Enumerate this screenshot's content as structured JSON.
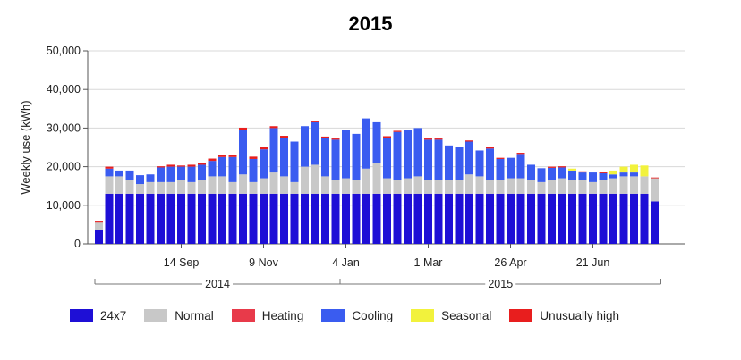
{
  "chart_data": {
    "type": "bar",
    "stacked": true,
    "title": "2015",
    "ylabel": "Weekly use (kWh)",
    "ylim": [
      0,
      50000
    ],
    "yticks": [
      0,
      10000,
      20000,
      30000,
      40000,
      50000
    ],
    "ytick_labels": [
      "0",
      "10,000",
      "20,000",
      "30,000",
      "40,000",
      "50,000"
    ],
    "grid": true,
    "legend_position": "bottom",
    "x_tick_labels": [
      {
        "label": "14 Sep",
        "index": 8
      },
      {
        "label": "9 Nov",
        "index": 16
      },
      {
        "label": "4 Jan",
        "index": 24
      },
      {
        "label": "1 Mar",
        "index": 32
      },
      {
        "label": "26 Apr",
        "index": 40
      },
      {
        "label": "21 Jun",
        "index": 48
      }
    ],
    "year_groups": [
      {
        "label": "2014",
        "start": 0,
        "end": 23
      },
      {
        "label": "2015",
        "start": 24,
        "end": 54
      }
    ],
    "categories_count": 55,
    "series": [
      {
        "name": "24x7",
        "color": "#1e0fd6",
        "values": [
          3500,
          13000,
          13000,
          13000,
          13000,
          13000,
          13000,
          13000,
          13000,
          13000,
          13000,
          13000,
          13000,
          13000,
          13000,
          13000,
          13000,
          13000,
          13000,
          13000,
          13000,
          13000,
          13000,
          13000,
          13000,
          13000,
          13000,
          13000,
          13000,
          13000,
          13000,
          13000,
          13000,
          13000,
          13000,
          13000,
          13000,
          13000,
          13000,
          13000,
          13000,
          13000,
          13000,
          13000,
          13000,
          13000,
          13000,
          13000,
          13000,
          13000,
          13000,
          13000,
          13000,
          13000,
          11000
        ]
      },
      {
        "name": "Normal",
        "color": "#c8c8c8",
        "values": [
          2000,
          4500,
          4500,
          3500,
          2500,
          3000,
          3000,
          3000,
          3500,
          3000,
          3500,
          4500,
          4500,
          3000,
          5000,
          3000,
          4000,
          5500,
          4500,
          3000,
          7000,
          7500,
          4500,
          3500,
          4000,
          3500,
          6500,
          8000,
          4000,
          3500,
          4000,
          4500,
          3500,
          3500,
          3500,
          3500,
          5000,
          4500,
          3500,
          3500,
          4000,
          4000,
          3500,
          3000,
          3500,
          4000,
          3500,
          3500,
          3000,
          3500,
          4000,
          4500,
          4500,
          4500,
          6000
        ]
      },
      {
        "name": "Heating",
        "color": "#e83a4a",
        "values": [
          0,
          0,
          0,
          0,
          0,
          0,
          0,
          0,
          0,
          0,
          0,
          0,
          0,
          0,
          0,
          0,
          0,
          0,
          0,
          0,
          0,
          0,
          0,
          0,
          0,
          0,
          0,
          0,
          0,
          0,
          0,
          0,
          0,
          0,
          0,
          0,
          0,
          0,
          0,
          0,
          0,
          0,
          0,
          0,
          0,
          0,
          0,
          0,
          0,
          0,
          0,
          0,
          0,
          0,
          0
        ]
      },
      {
        "name": "Cooling",
        "color": "#3a5cf0",
        "values": [
          0,
          2000,
          1500,
          2500,
          2300,
          2000,
          3800,
          4000,
          3500,
          4000,
          4000,
          4000,
          5000,
          6500,
          11500,
          6000,
          7500,
          11500,
          10000,
          10500,
          10500,
          11000,
          10000,
          10500,
          12500,
          12000,
          13000,
          10500,
          10500,
          12500,
          12500,
          12500,
          10500,
          10500,
          9000,
          8500,
          8500,
          6700,
          8200,
          5500,
          5300,
          6300,
          4000,
          3600,
          3200,
          2800,
          2500,
          2000,
          2500,
          1800,
          1000,
          1000,
          1000,
          0,
          0
        ]
      },
      {
        "name": "Seasonal",
        "color": "#f2f23c",
        "values": [
          0,
          0,
          0,
          0,
          0,
          0,
          0,
          0,
          0,
          0,
          0,
          0,
          0,
          0,
          0,
          0,
          0,
          0,
          0,
          0,
          0,
          0,
          0,
          0,
          0,
          0,
          0,
          0,
          0,
          0,
          0,
          0,
          0,
          0,
          0,
          0,
          0,
          0,
          0,
          0,
          0,
          0,
          0,
          0,
          0,
          0,
          500,
          0,
          0,
          0,
          1000,
          1500,
          2000,
          2800,
          0
        ]
      },
      {
        "name": "Unusually high",
        "color": "#e81e1e",
        "values": [
          500,
          500,
          0,
          0,
          0,
          0,
          300,
          500,
          300,
          500,
          500,
          600,
          500,
          500,
          600,
          600,
          500,
          500,
          500,
          0,
          0,
          300,
          300,
          300,
          0,
          0,
          0,
          0,
          400,
          300,
          0,
          0,
          300,
          300,
          0,
          0,
          300,
          0,
          300,
          300,
          0,
          300,
          0,
          0,
          300,
          300,
          0,
          300,
          0,
          300,
          0,
          0,
          0,
          0,
          200
        ]
      }
    ]
  }
}
